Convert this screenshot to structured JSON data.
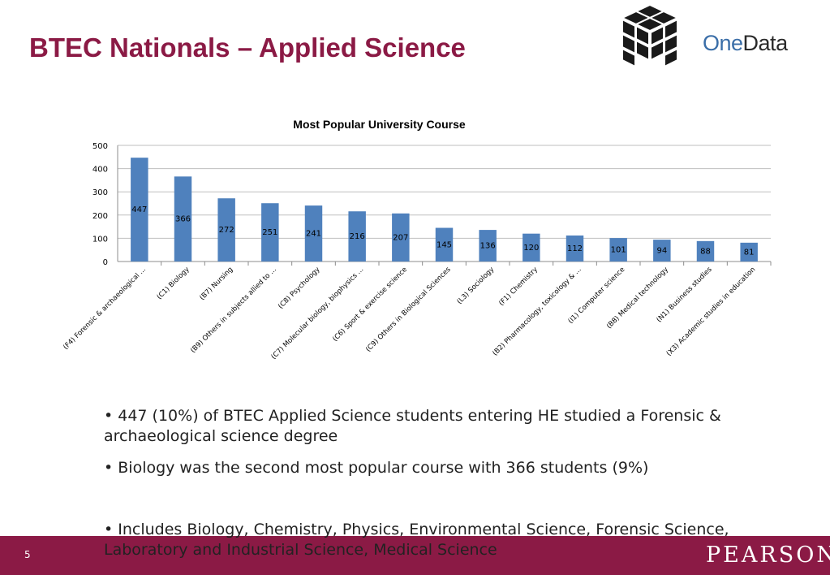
{
  "header": {
    "title": "BTEC Nationals – Applied Science"
  },
  "logo": {
    "brand_part1": "One",
    "brand_part2": "Data",
    "icon": "cube-grid-icon"
  },
  "chart_data": {
    "type": "bar",
    "title": "Most Popular University Course",
    "xlabel": "",
    "ylabel": "",
    "ylim": [
      0,
      500
    ],
    "yticks": [
      0,
      100,
      200,
      300,
      400,
      500
    ],
    "grid": true,
    "bar_color": "#4f81bd",
    "categories": [
      "(F4) Forensic & archaeological ...",
      "(C1) Biology",
      "(B7) Nursing",
      "(B9) Others in subjects allied to ...",
      "(C8) Psychology",
      "(C7) Molecular biology, biophysics ...",
      "(C6) Sport & exercise science",
      "(C9) Others in Biological Sciences",
      "(L3) Sociology",
      "(F1) Chemistry",
      "(B2) Pharmacology, toxicology & ...",
      "(I1) Computer science",
      "(B8) Medical technology",
      "(N1) Business studies",
      "(X3) Academic studies in education"
    ],
    "values": [
      447,
      366,
      272,
      251,
      241,
      216,
      207,
      145,
      136,
      120,
      112,
      101,
      94,
      88,
      81
    ]
  },
  "bullets": [
    "447 (10%) of BTEC Applied Science students entering HE studied a Forensic & archaeological science degree",
    "Biology was the second most popular course with 366 students (9%)"
  ],
  "footnote": "Includes Biology, Chemistry, Physics, Environmental Science, Forensic Science, Laboratory and Industrial Science, Medical Science",
  "footer": {
    "page_number": "5",
    "brand": "PEARSON"
  },
  "colors": {
    "accent": "#8b1a45",
    "bar": "#4f81bd"
  }
}
